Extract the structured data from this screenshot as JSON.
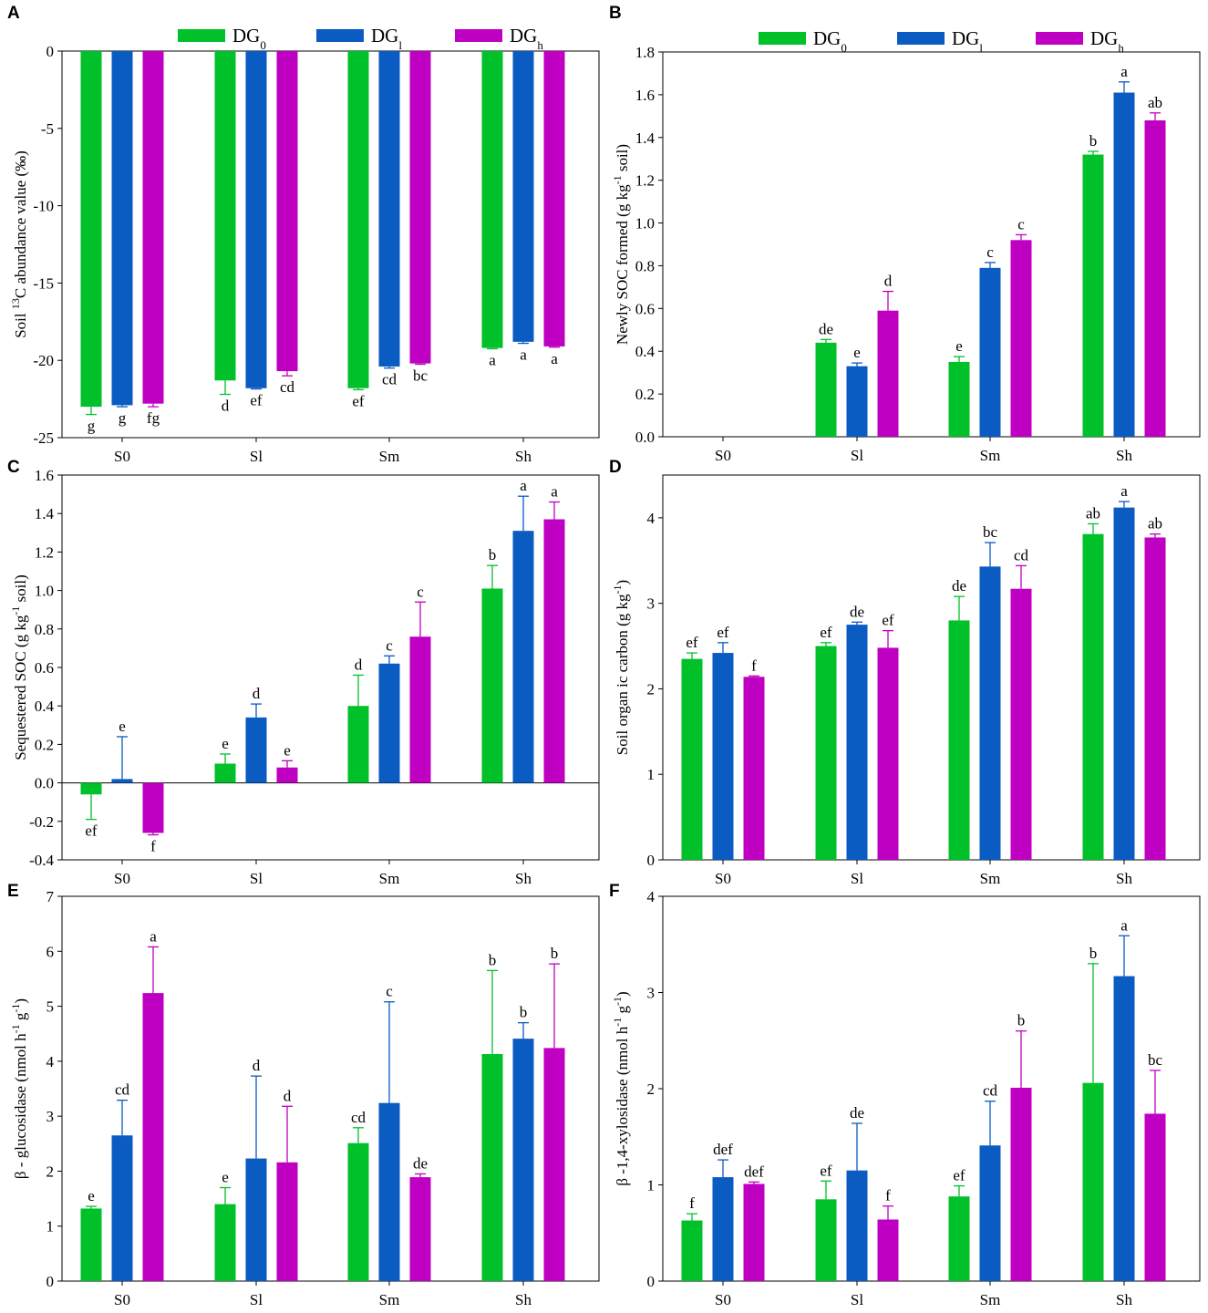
{
  "colors": {
    "DG0": "#00c12a",
    "DGl": "#0a5bc2",
    "DGh": "#bf00c2"
  },
  "legend": [
    {
      "key": "DG0",
      "base": "DG",
      "sub": "0"
    },
    {
      "key": "DGl",
      "base": "DG",
      "sub": "l"
    },
    {
      "key": "DGh",
      "base": "DG",
      "sub": "h"
    }
  ],
  "chart_data": [
    {
      "panel": "A",
      "type": "bar",
      "categories": [
        "S0",
        "Sl",
        "Sm",
        "Sh"
      ],
      "ylabel": {
        "pre": "Soil ",
        "sup": "13",
        "post": "C abundance value  (‰)"
      },
      "ylim": [
        -25,
        0
      ],
      "yticks": [
        0,
        -5,
        -10,
        -15,
        -20,
        -25
      ],
      "series": [
        {
          "name": "DG0",
          "values": [
            -23.0,
            -21.3,
            -21.8,
            -19.2
          ],
          "err": [
            0.5,
            0.9,
            0.1,
            0.05
          ],
          "labels": [
            "g",
            "d",
            "ef",
            "a"
          ]
        },
        {
          "name": "DGl",
          "values": [
            -22.9,
            -21.8,
            -20.4,
            -18.8
          ],
          "err": [
            0.1,
            0.05,
            0.1,
            0.1
          ],
          "labels": [
            "g",
            "ef",
            "cd",
            "a"
          ]
        },
        {
          "name": "DGh",
          "values": [
            -22.8,
            -20.7,
            -20.2,
            -19.1
          ],
          "err": [
            0.2,
            0.3,
            0.05,
            0.05
          ],
          "labels": [
            "fg",
            "cd",
            "bc",
            "a"
          ]
        }
      ]
    },
    {
      "panel": "B",
      "type": "bar",
      "categories": [
        "S0",
        "Sl",
        "Sm",
        "Sh"
      ],
      "ylabel": {
        "pre": "Newly SOC formed (g  kg",
        "sup": "-1",
        "post": " soil)"
      },
      "ylim": [
        0,
        1.8
      ],
      "yticks": [
        0.0,
        0.2,
        0.4,
        0.6,
        0.8,
        1.0,
        1.2,
        1.4,
        1.6,
        1.8
      ],
      "series": [
        {
          "name": "DG0",
          "values": [
            null,
            0.44,
            0.35,
            1.32
          ],
          "err": [
            0,
            0.015,
            0.025,
            0.015
          ],
          "labels": [
            "",
            "de",
            "e",
            "b"
          ]
        },
        {
          "name": "DGl",
          "values": [
            null,
            0.33,
            0.79,
            1.61
          ],
          "err": [
            0,
            0.015,
            0.025,
            0.05
          ],
          "labels": [
            "",
            "e",
            "c",
            "a"
          ]
        },
        {
          "name": "DGh",
          "values": [
            null,
            0.59,
            0.92,
            1.48
          ],
          "err": [
            0,
            0.09,
            0.025,
            0.035
          ],
          "labels": [
            "",
            "d",
            "c",
            "ab"
          ]
        }
      ]
    },
    {
      "panel": "C",
      "type": "bar",
      "categories": [
        "S0",
        "Sl",
        "Sm",
        "Sh"
      ],
      "ylabel": {
        "pre": "Sequestered SOC (g  kg",
        "sup": "-1",
        "post": " soil)"
      },
      "ylim": [
        -0.4,
        1.6
      ],
      "yticks": [
        -0.4,
        -0.2,
        0.0,
        0.2,
        0.4,
        0.6,
        0.8,
        1.0,
        1.2,
        1.4,
        1.6
      ],
      "series": [
        {
          "name": "DG0",
          "values": [
            -0.06,
            0.1,
            0.4,
            1.01
          ],
          "err": [
            0.13,
            0.05,
            0.16,
            0.12
          ],
          "labels": [
            "ef",
            "e",
            "d",
            "b"
          ]
        },
        {
          "name": "DGl",
          "values": [
            0.02,
            0.34,
            0.62,
            1.31
          ],
          "err": [
            0.22,
            0.07,
            0.04,
            0.18
          ],
          "labels": [
            "e",
            "d",
            "c",
            "a"
          ]
        },
        {
          "name": "DGh",
          "values": [
            -0.26,
            0.08,
            0.76,
            1.37
          ],
          "err": [
            0.01,
            0.035,
            0.18,
            0.09
          ],
          "labels": [
            "f",
            "e",
            "c",
            "a"
          ]
        }
      ]
    },
    {
      "panel": "D",
      "type": "bar",
      "categories": [
        "S0",
        "Sl",
        "Sm",
        "Sh"
      ],
      "ylabel": {
        "pre": "Soil organ ic carbon (g  kg",
        "sup": "-1",
        "post": ")"
      },
      "ylim": [
        0,
        4.5
      ],
      "yticks": [
        0,
        1,
        2,
        3,
        4
      ],
      "series": [
        {
          "name": "DG0",
          "values": [
            2.35,
            2.5,
            2.8,
            3.81
          ],
          "err": [
            0.07,
            0.04,
            0.28,
            0.12
          ],
          "labels": [
            "ef",
            "ef",
            "de",
            "ab"
          ]
        },
        {
          "name": "DGl",
          "values": [
            2.42,
            2.75,
            3.43,
            4.12
          ],
          "err": [
            0.12,
            0.03,
            0.28,
            0.07
          ],
          "labels": [
            "ef",
            "de",
            "bc",
            "a"
          ]
        },
        {
          "name": "DGh",
          "values": [
            2.14,
            2.48,
            3.17,
            3.77
          ],
          "err": [
            0.01,
            0.2,
            0.27,
            0.04
          ],
          "labels": [
            "f",
            "ef",
            "cd",
            "ab"
          ]
        }
      ]
    },
    {
      "panel": "E",
      "type": "bar",
      "categories": [
        "S0",
        "Sl",
        "Sm",
        "Sh"
      ],
      "ylabel": {
        "pre": "β - glucosidase (nmol h",
        "sup": "-1",
        "mid": " g",
        "sup2": "-1",
        "post": ")"
      },
      "ylim": [
        0,
        7
      ],
      "yticks": [
        0,
        1,
        2,
        3,
        4,
        5,
        6,
        7
      ],
      "series": [
        {
          "name": "DG0",
          "values": [
            1.32,
            1.4,
            2.51,
            4.13
          ],
          "err": [
            0.04,
            0.3,
            0.28,
            1.52
          ],
          "labels": [
            "e",
            "e",
            "cd",
            "b"
          ]
        },
        {
          "name": "DGl",
          "values": [
            2.65,
            2.23,
            3.24,
            4.41
          ],
          "err": [
            0.64,
            1.5,
            1.84,
            0.29
          ],
          "labels": [
            "cd",
            "d",
            "c",
            "b"
          ]
        },
        {
          "name": "DGh",
          "values": [
            5.24,
            2.16,
            1.89,
            4.24
          ],
          "err": [
            0.84,
            1.02,
            0.06,
            1.53
          ],
          "labels": [
            "a",
            "d",
            "de",
            "b"
          ]
        }
      ]
    },
    {
      "panel": "F",
      "type": "bar",
      "categories": [
        "S0",
        "Sl",
        "Sm",
        "Sh"
      ],
      "ylabel": {
        "pre": "β -1,4-xylosidase (nmol h",
        "sup": "-1",
        "mid": " g",
        "sup2": "-1",
        "post": ")"
      },
      "ylim": [
        0,
        4
      ],
      "yticks": [
        0,
        1,
        2,
        3,
        4
      ],
      "series": [
        {
          "name": "DG0",
          "values": [
            0.63,
            0.85,
            0.88,
            2.06
          ],
          "err": [
            0.07,
            0.19,
            0.11,
            1.24
          ],
          "labels": [
            "f",
            "ef",
            "ef",
            "b"
          ]
        },
        {
          "name": "DGl",
          "values": [
            1.08,
            1.15,
            1.41,
            3.17
          ],
          "err": [
            0.18,
            0.49,
            0.46,
            0.42
          ],
          "labels": [
            "def",
            "de",
            "cd",
            "a"
          ]
        },
        {
          "name": "DGh",
          "values": [
            1.01,
            0.64,
            2.01,
            1.74
          ],
          "err": [
            0.02,
            0.14,
            0.59,
            0.45
          ],
          "labels": [
            "def",
            "f",
            "b",
            "bc"
          ]
        }
      ]
    }
  ]
}
